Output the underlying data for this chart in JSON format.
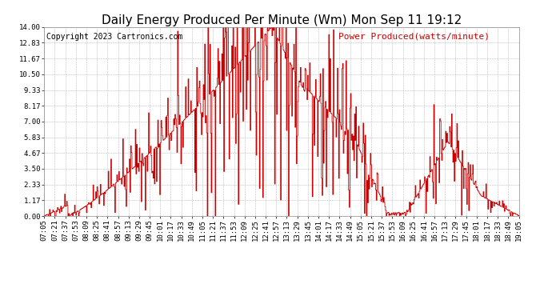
{
  "title": "Daily Energy Produced Per Minute (Wm) Mon Sep 11 19:12",
  "copyright": "Copyright 2023 Cartronics.com",
  "legend_label": "Power Produced(watts/minute)",
  "y_ticks": [
    0.0,
    1.17,
    2.33,
    3.5,
    4.67,
    5.83,
    7.0,
    8.17,
    9.33,
    10.5,
    11.67,
    12.83,
    14.0
  ],
  "ylim": [
    0,
    14.0
  ],
  "line_color": "#cc0000",
  "background_color": "#ffffff",
  "grid_color": "#bbbbbb",
  "title_fontsize": 11,
  "copyright_fontsize": 7,
  "legend_fontsize": 8,
  "tick_fontsize": 6.5,
  "x_tick_labels": [
    "07:05",
    "07:21",
    "07:37",
    "07:53",
    "08:09",
    "08:25",
    "08:41",
    "08:57",
    "09:13",
    "09:29",
    "09:45",
    "10:01",
    "10:17",
    "10:33",
    "10:49",
    "11:05",
    "11:21",
    "11:37",
    "11:53",
    "12:09",
    "12:25",
    "12:41",
    "12:57",
    "13:13",
    "13:29",
    "13:45",
    "14:01",
    "14:17",
    "14:33",
    "14:49",
    "15:05",
    "15:21",
    "15:37",
    "15:53",
    "16:09",
    "16:25",
    "16:41",
    "16:57",
    "17:13",
    "17:29",
    "17:45",
    "18:01",
    "18:17",
    "18:33",
    "18:49",
    "19:05"
  ]
}
